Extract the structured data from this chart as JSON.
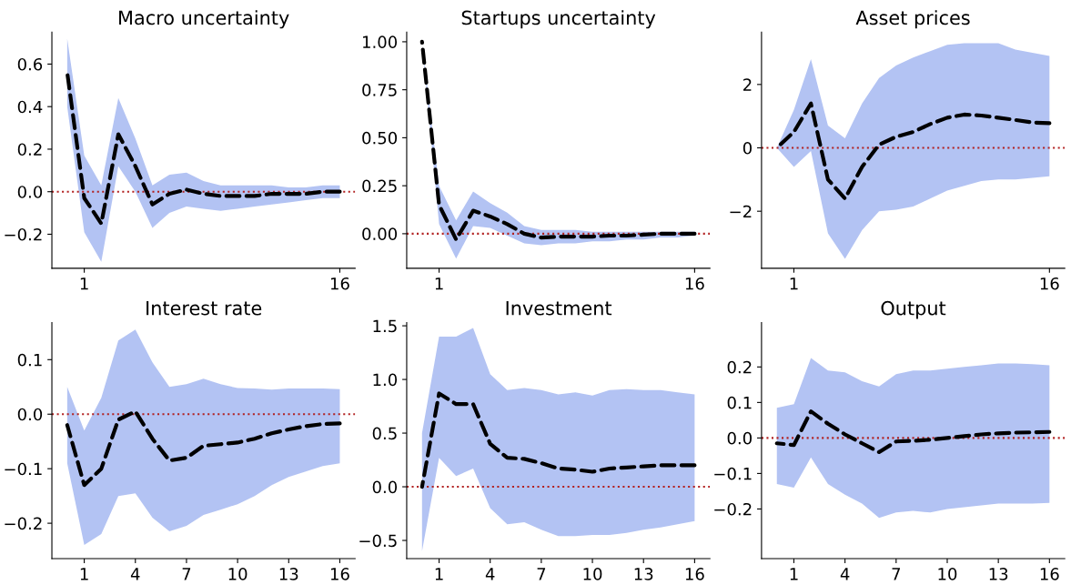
{
  "chart_data": [
    {
      "type": "line",
      "title": "Macro uncertainty",
      "x": [
        0,
        1,
        2,
        3,
        4,
        5,
        6,
        7,
        8,
        9,
        10,
        11,
        12,
        13,
        14,
        15,
        16
      ],
      "xlim": [
        -0.9,
        16.9
      ],
      "xticks": [
        1,
        16
      ],
      "ylim": [
        -0.36,
        0.75
      ],
      "yticks": [
        {
          "value": -0.2,
          "label": "−0.2"
        },
        {
          "value": 0,
          "label": "0.0"
        },
        0.2,
        0.4,
        0.6
      ],
      "line_style": "dashed",
      "grid": false,
      "ref_lines": [
        {
          "axis": "y",
          "value": 0,
          "color": "#b22222",
          "line_style": "dotted"
        }
      ],
      "series": [
        {
          "color": "#000000",
          "values": [
            0.56,
            -0.03,
            -0.15,
            0.27,
            0.12,
            -0.06,
            -0.01,
            0.01,
            -0.01,
            -0.02,
            -0.02,
            -0.02,
            -0.01,
            -0.01,
            -0.01,
            0.0,
            0.0
          ],
          "upper": [
            0.72,
            0.17,
            0.03,
            0.44,
            0.25,
            0.03,
            0.08,
            0.09,
            0.05,
            0.03,
            0.03,
            0.03,
            0.03,
            0.02,
            0.02,
            0.03,
            0.03
          ],
          "lower": [
            0.4,
            -0.19,
            -0.33,
            0.12,
            0.0,
            -0.17,
            -0.1,
            -0.07,
            -0.08,
            -0.09,
            -0.08,
            -0.07,
            -0.06,
            -0.05,
            -0.04,
            -0.03,
            -0.03
          ]
        }
      ]
    },
    {
      "type": "line",
      "title": "Startups uncertainty",
      "x": [
        0,
        1,
        2,
        3,
        4,
        5,
        6,
        7,
        8,
        9,
        10,
        11,
        12,
        13,
        14,
        15,
        16
      ],
      "xlim": [
        -0.9,
        16.9
      ],
      "xticks": [
        1,
        16
      ],
      "ylim": [
        -0.18,
        1.05
      ],
      "yticks": [
        {
          "value": 0,
          "label": "0.00"
        },
        0.25,
        {
          "value": 0.5,
          "label": "0.50"
        },
        0.75,
        {
          "value": 1,
          "label": "1.00"
        }
      ],
      "line_style": "dashed",
      "grid": false,
      "ref_lines": [
        {
          "axis": "y",
          "value": 0,
          "color": "#b22222",
          "line_style": "dotted"
        }
      ],
      "series": [
        {
          "color": "#000000",
          "values": [
            1.0,
            0.15,
            -0.03,
            0.12,
            0.09,
            0.05,
            0.0,
            -0.02,
            -0.015,
            -0.015,
            -0.015,
            -0.01,
            -0.01,
            -0.005,
            0.0,
            0.0,
            0.0
          ],
          "upper": [
            1.0,
            0.25,
            0.07,
            0.22,
            0.16,
            0.11,
            0.04,
            0.02,
            0.02,
            0.02,
            0.01,
            0.01,
            0.01,
            0.01,
            0.01,
            0.01,
            0.01
          ],
          "lower": [
            1.0,
            0.05,
            -0.13,
            0.04,
            0.03,
            -0.01,
            -0.05,
            -0.06,
            -0.05,
            -0.05,
            -0.04,
            -0.04,
            -0.03,
            -0.03,
            -0.02,
            -0.02,
            -0.01
          ]
        }
      ]
    },
    {
      "type": "line",
      "title": "Asset prices",
      "x": [
        0,
        1,
        2,
        3,
        4,
        5,
        6,
        7,
        8,
        9,
        10,
        11,
        12,
        13,
        14,
        15,
        16
      ],
      "xlim": [
        -0.9,
        16.9
      ],
      "xticks": [
        1,
        16
      ],
      "ylim": [
        -3.8,
        3.65
      ],
      "yticks": [
        {
          "value": -2,
          "label": "−2"
        },
        0,
        2
      ],
      "line_style": "dashed",
      "grid": false,
      "ref_lines": [
        {
          "axis": "y",
          "value": 0,
          "color": "#b22222",
          "line_style": "dotted"
        }
      ],
      "series": [
        {
          "color": "#000000",
          "values": [
            0.0,
            0.5,
            1.4,
            -1.0,
            -1.6,
            -0.6,
            0.1,
            0.35,
            0.5,
            0.75,
            0.95,
            1.05,
            1.02,
            0.95,
            0.88,
            0.8,
            0.78
          ],
          "upper": [
            0.0,
            1.2,
            2.8,
            0.7,
            0.3,
            1.4,
            2.2,
            2.6,
            2.85,
            3.05,
            3.25,
            3.3,
            3.3,
            3.3,
            3.1,
            3.0,
            2.9
          ],
          "lower": [
            0.0,
            -0.6,
            -0.1,
            -2.7,
            -3.5,
            -2.6,
            -2.0,
            -1.95,
            -1.85,
            -1.6,
            -1.35,
            -1.2,
            -1.05,
            -1.0,
            -1.0,
            -0.95,
            -0.9
          ]
        }
      ]
    },
    {
      "type": "line",
      "title": "Interest rate",
      "x": [
        0,
        1,
        2,
        3,
        4,
        5,
        6,
        7,
        8,
        9,
        10,
        11,
        12,
        13,
        14,
        15,
        16
      ],
      "xlim": [
        -0.9,
        16.9
      ],
      "xticks": [
        1,
        4,
        7,
        10,
        13,
        16
      ],
      "ylim": [
        -0.265,
        0.168
      ],
      "yticks": [
        {
          "value": -0.2,
          "label": "−0.2"
        },
        {
          "value": -0.1,
          "label": "−0.1"
        },
        {
          "value": 0,
          "label": "0.0"
        },
        0.1
      ],
      "line_style": "dashed",
      "grid": false,
      "ref_lines": [
        {
          "axis": "y",
          "value": 0,
          "color": "#b22222",
          "line_style": "dotted"
        }
      ],
      "series": [
        {
          "color": "#000000",
          "values": [
            -0.02,
            -0.13,
            -0.1,
            -0.01,
            0.005,
            -0.045,
            -0.085,
            -0.08,
            -0.058,
            -0.055,
            -0.052,
            -0.045,
            -0.035,
            -0.028,
            -0.022,
            -0.018,
            -0.017
          ],
          "upper": [
            0.05,
            -0.03,
            0.03,
            0.135,
            0.155,
            0.095,
            0.05,
            0.055,
            0.065,
            0.055,
            0.048,
            0.047,
            0.045,
            0.047,
            0.047,
            0.047,
            0.046
          ],
          "lower": [
            -0.09,
            -0.24,
            -0.22,
            -0.15,
            -0.145,
            -0.19,
            -0.215,
            -0.205,
            -0.185,
            -0.175,
            -0.165,
            -0.15,
            -0.13,
            -0.115,
            -0.105,
            -0.095,
            -0.09
          ]
        }
      ]
    },
    {
      "type": "line",
      "title": "Investment",
      "x": [
        0,
        1,
        2,
        3,
        4,
        5,
        6,
        7,
        8,
        9,
        10,
        11,
        12,
        13,
        14,
        15,
        16
      ],
      "xlim": [
        -0.9,
        16.9
      ],
      "xticks": [
        1,
        4,
        7,
        10,
        13,
        16
      ],
      "ylim": [
        -0.67,
        1.53
      ],
      "yticks": [
        {
          "value": -0.5,
          "label": "−0.5"
        },
        {
          "value": 0,
          "label": "0.0"
        },
        0.5,
        {
          "value": 1,
          "label": "1.0"
        },
        1.5
      ],
      "line_style": "dashed",
      "grid": false,
      "ref_lines": [
        {
          "axis": "y",
          "value": 0,
          "color": "#b22222",
          "line_style": "dotted"
        }
      ],
      "series": [
        {
          "color": "#000000",
          "values": [
            0.0,
            0.87,
            0.77,
            0.77,
            0.4,
            0.27,
            0.26,
            0.22,
            0.17,
            0.16,
            0.14,
            0.17,
            0.18,
            0.19,
            0.2,
            0.2,
            0.2
          ],
          "upper": [
            0.5,
            1.4,
            1.4,
            1.48,
            1.05,
            0.9,
            0.92,
            0.9,
            0.86,
            0.88,
            0.85,
            0.9,
            0.91,
            0.9,
            0.9,
            0.88,
            0.86
          ],
          "lower": [
            -0.6,
            0.27,
            0.1,
            0.17,
            -0.2,
            -0.35,
            -0.33,
            -0.4,
            -0.46,
            -0.46,
            -0.45,
            -0.45,
            -0.43,
            -0.4,
            -0.38,
            -0.35,
            -0.32
          ]
        }
      ]
    },
    {
      "type": "line",
      "title": "Output",
      "x": [
        0,
        1,
        2,
        3,
        4,
        5,
        6,
        7,
        8,
        9,
        10,
        11,
        12,
        13,
        14,
        15,
        16
      ],
      "xlim": [
        -0.9,
        16.9
      ],
      "xticks": [
        1,
        4,
        7,
        10,
        13,
        16
      ],
      "ylim": [
        -0.34,
        0.325
      ],
      "yticks": [
        {
          "value": -0.2,
          "label": "−0.2"
        },
        {
          "value": -0.1,
          "label": "−0.1"
        },
        {
          "value": 0,
          "label": "0.0"
        },
        0.1,
        0.2
      ],
      "line_style": "dashed",
      "grid": false,
      "ref_lines": [
        {
          "axis": "y",
          "value": 0,
          "color": "#b22222",
          "line_style": "dotted"
        }
      ],
      "series": [
        {
          "color": "#000000",
          "values": [
            -0.015,
            -0.02,
            0.075,
            0.04,
            0.01,
            -0.015,
            -0.04,
            -0.01,
            -0.008,
            -0.005,
            0.0,
            0.005,
            0.01,
            0.013,
            0.015,
            0.016,
            0.017
          ],
          "upper": [
            0.085,
            0.095,
            0.225,
            0.19,
            0.185,
            0.16,
            0.145,
            0.18,
            0.19,
            0.19,
            0.195,
            0.2,
            0.205,
            0.21,
            0.21,
            0.208,
            0.205
          ],
          "lower": [
            -0.13,
            -0.14,
            -0.055,
            -0.13,
            -0.16,
            -0.185,
            -0.225,
            -0.21,
            -0.205,
            -0.21,
            -0.2,
            -0.195,
            -0.19,
            -0.185,
            -0.185,
            -0.185,
            -0.183
          ]
        }
      ]
    }
  ]
}
